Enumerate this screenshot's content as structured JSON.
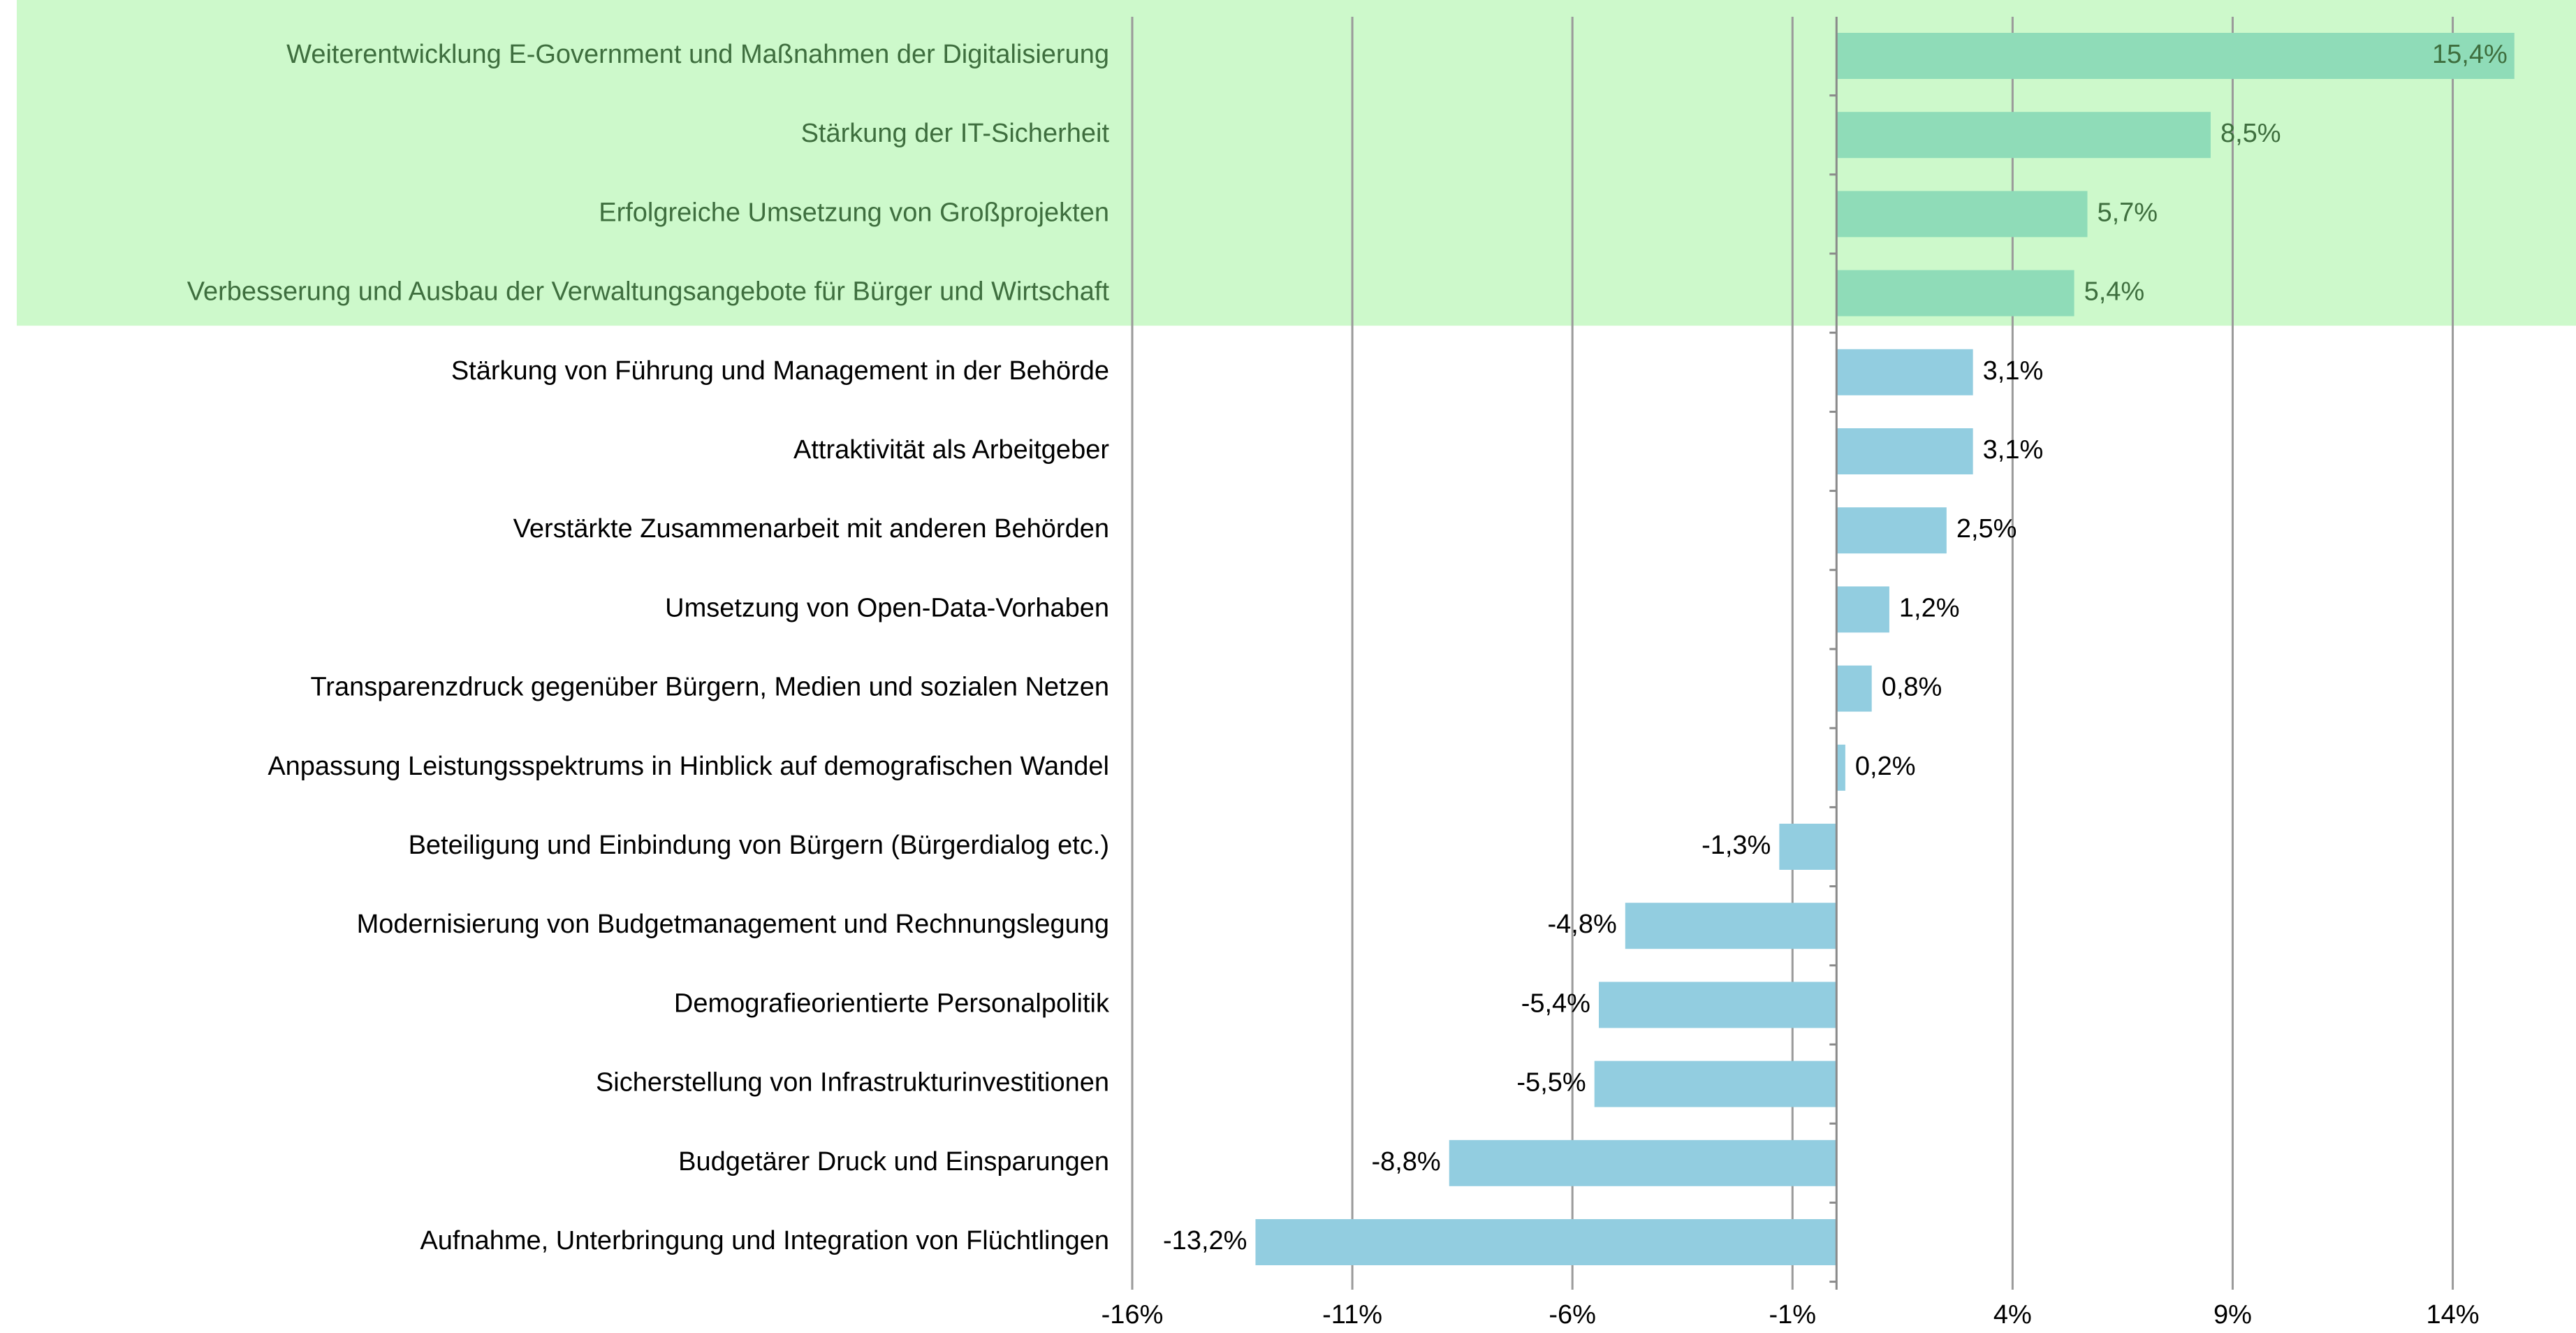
{
  "chart_data": {
    "type": "bar",
    "orientation": "horizontal",
    "categories": [
      "Weiterentwicklung E-Government und Maßnahmen der Digitalisierung",
      "Stärkung der IT-Sicherheit",
      "Erfolgreiche Umsetzung von Großprojekten",
      "Verbesserung und Ausbau der Verwaltungsangebote für Bürger und Wirtschaft",
      "Stärkung von Führung und Management in der Behörde",
      "Attraktivität als Arbeitgeber",
      "Verstärkte Zusammenarbeit mit anderen Behörden",
      "Umsetzung von Open-Data-Vorhaben",
      "Transparenzdruck gegenüber Bürgern, Medien und sozialen Netzen",
      "Anpassung Leistungsspektrums in Hinblick auf demografischen Wandel",
      "Beteiligung und Einbindung von Bürgern (Bürgerdialog etc.)",
      "Modernisierung von Budgetmanagement und Rechnungslegung",
      "Demografieorientierte Personalpolitik",
      "Sicherstellung von Infrastrukturinvestitionen",
      "Budgetärer Druck und Einsparungen",
      "Aufnahme, Unterbringung und Integration von Flüchtlingen"
    ],
    "values": [
      15.4,
      8.5,
      5.7,
      5.4,
      3.1,
      3.1,
      2.5,
      1.2,
      0.8,
      0.2,
      -1.3,
      -4.8,
      -5.4,
      -5.5,
      -8.8,
      -13.2
    ],
    "value_labels": [
      "15,4%",
      "8,5%",
      "5,7%",
      "5,4%",
      "3,1%",
      "3,1%",
      "2,5%",
      "1,2%",
      "0,8%",
      "0,2%",
      "-1,3%",
      "-4,8%",
      "-5,4%",
      "-5,5%",
      "-8,8%",
      "-13,2%"
    ],
    "colors": [
      "#8fdcb8",
      "#8fdcb8",
      "#8fdcb8",
      "#8fdcb8",
      "#92cde0",
      "#92cde0",
      "#92cde0",
      "#92cde0",
      "#92cde0",
      "#92cde0",
      "#92cde0",
      "#92cde0",
      "#92cde0",
      "#92cde0",
      "#92cde0",
      "#92cde0"
    ],
    "highlight": {
      "from": 0,
      "to": 3,
      "color": "#cdf9cb",
      "text_color": "#3e6e3e"
    },
    "xlim": [
      -16,
      16.8
    ],
    "xticks": [
      {
        "value": -16,
        "label": "-16%"
      },
      {
        "value": -11,
        "label": "-11%"
      },
      {
        "value": -6,
        "label": "-6%"
      },
      {
        "value": -1,
        "label": "-1%"
      },
      {
        "value": 4,
        "label": "4%"
      },
      {
        "value": 9,
        "label": "9%"
      },
      {
        "value": 14,
        "label": "14%"
      }
    ],
    "grid": true
  }
}
